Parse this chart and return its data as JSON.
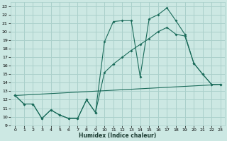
{
  "xlabel": "Humidex (Indice chaleur)",
  "bg_color": "#cce8e3",
  "grid_color": "#aad0cb",
  "line_color": "#1a6b5a",
  "xticks": [
    0,
    1,
    2,
    3,
    4,
    5,
    6,
    7,
    8,
    9,
    10,
    11,
    12,
    13,
    14,
    15,
    16,
    17,
    18,
    19,
    20,
    21,
    22,
    23
  ],
  "yticks": [
    9,
    10,
    11,
    12,
    13,
    14,
    15,
    16,
    17,
    18,
    19,
    20,
    21,
    22,
    23
  ],
  "xlim": [
    -0.5,
    23.5
  ],
  "ylim": [
    9,
    23.5
  ],
  "line1_x": [
    0,
    1,
    2,
    3,
    4,
    5,
    6,
    7,
    8,
    9,
    10,
    11,
    12,
    13,
    14,
    15,
    16,
    17,
    18,
    19,
    20,
    21,
    22
  ],
  "line1_y": [
    12.5,
    11.5,
    11.5,
    9.8,
    10.8,
    10.2,
    9.8,
    9.8,
    12.0,
    10.5,
    18.8,
    21.2,
    21.3,
    21.3,
    14.7,
    21.5,
    22.0,
    22.8,
    21.3,
    19.7,
    16.3,
    15.0,
    13.8
  ],
  "line2_x": [
    0,
    1,
    2,
    3,
    4,
    5,
    6,
    7,
    8,
    9,
    10,
    11,
    12,
    13,
    14,
    15,
    16,
    17,
    18,
    19,
    20,
    21,
    22,
    23
  ],
  "line2_y": [
    12.5,
    11.5,
    11.5,
    9.8,
    10.8,
    10.2,
    9.8,
    9.8,
    12.0,
    10.5,
    15.2,
    16.2,
    17.0,
    17.8,
    18.5,
    19.2,
    20.0,
    20.5,
    19.7,
    19.5,
    16.3,
    15.0,
    13.8,
    13.8
  ],
  "line3_x": [
    0,
    23
  ],
  "line3_y": [
    12.5,
    13.8
  ]
}
